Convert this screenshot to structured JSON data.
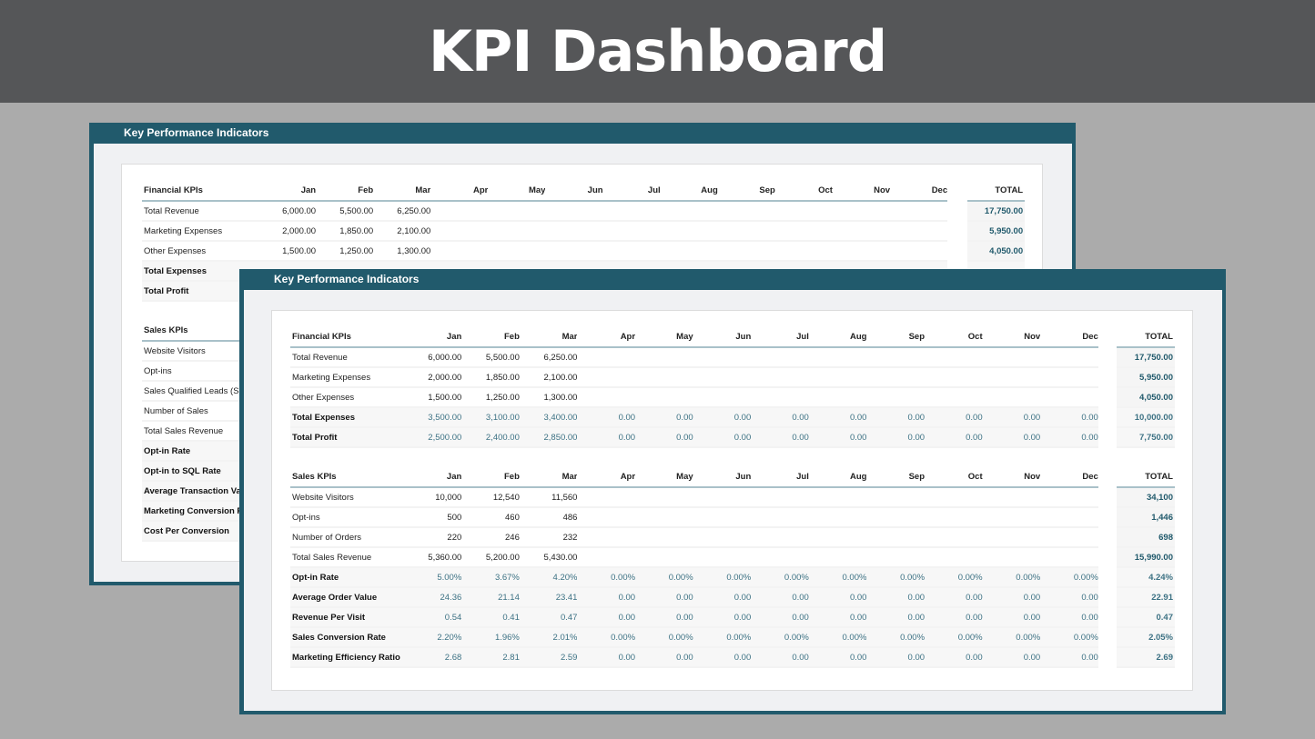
{
  "title": "KPI Dashboard",
  "months": [
    "Jan",
    "Feb",
    "Mar",
    "Apr",
    "May",
    "Jun",
    "Jul",
    "Aug",
    "Sep",
    "Oct",
    "Nov",
    "Dec"
  ],
  "total_label": "TOTAL",
  "back": {
    "header": "Key Performance Indicators",
    "financial": {
      "title": "Financial KPIs",
      "rows": [
        {
          "label": "Total Revenue",
          "values": [
            "6,000.00",
            "5,500.00",
            "6,250.00"
          ],
          "total": "17,750.00"
        },
        {
          "label": "Marketing Expenses",
          "values": [
            "2,000.00",
            "1,850.00",
            "2,100.00"
          ],
          "total": "5,950.00"
        },
        {
          "label": "Other Expenses",
          "values": [
            "1,500.00",
            "1,250.00",
            "1,300.00"
          ],
          "total": "4,050.00"
        },
        {
          "label": "Total Expenses",
          "calc": true
        },
        {
          "label": "Total Profit",
          "calc": true
        }
      ]
    },
    "sales": {
      "title": "Sales KPIs",
      "rows": [
        {
          "label": "Website Visitors"
        },
        {
          "label": "Opt-ins"
        },
        {
          "label": "Sales Qualified Leads (SQL)"
        },
        {
          "label": "Number of Sales"
        },
        {
          "label": "Total Sales Revenue"
        },
        {
          "label": "Opt-in Rate",
          "calc": true
        },
        {
          "label": "Opt-in to SQL Rate",
          "calc": true
        },
        {
          "label": "Average Transaction Value",
          "calc": true
        },
        {
          "label": "Marketing Conversion Rate",
          "calc": true
        },
        {
          "label": "Cost Per Conversion",
          "calc": true
        }
      ]
    }
  },
  "front": {
    "header": "Key Performance Indicators",
    "financial": {
      "title": "Financial KPIs",
      "rows": [
        {
          "label": "Total Revenue",
          "values": [
            "6,000.00",
            "5,500.00",
            "6,250.00"
          ],
          "total": "17,750.00"
        },
        {
          "label": "Marketing Expenses",
          "values": [
            "2,000.00",
            "1,850.00",
            "2,100.00"
          ],
          "total": "5,950.00"
        },
        {
          "label": "Other Expenses",
          "values": [
            "1,500.00",
            "1,250.00",
            "1,300.00"
          ],
          "total": "4,050.00"
        },
        {
          "label": "Total Expenses",
          "calc": true,
          "values": [
            "3,500.00",
            "3,100.00",
            "3,400.00",
            "0.00",
            "0.00",
            "0.00",
            "0.00",
            "0.00",
            "0.00",
            "0.00",
            "0.00",
            "0.00"
          ],
          "total": "10,000.00"
        },
        {
          "label": "Total Profit",
          "calc": true,
          "values": [
            "2,500.00",
            "2,400.00",
            "2,850.00",
            "0.00",
            "0.00",
            "0.00",
            "0.00",
            "0.00",
            "0.00",
            "0.00",
            "0.00",
            "0.00"
          ],
          "total": "7,750.00"
        }
      ]
    },
    "sales": {
      "title": "Sales KPIs",
      "rows": [
        {
          "label": "Website Visitors",
          "values": [
            "10,000",
            "12,540",
            "11,560"
          ],
          "total": "34,100"
        },
        {
          "label": "Opt-ins",
          "values": [
            "500",
            "460",
            "486"
          ],
          "total": "1,446"
        },
        {
          "label": "Number of Orders",
          "values": [
            "220",
            "246",
            "232"
          ],
          "total": "698"
        },
        {
          "label": "Total Sales Revenue",
          "values": [
            "5,360.00",
            "5,200.00",
            "5,430.00"
          ],
          "total": "15,990.00"
        },
        {
          "label": "Opt-in Rate",
          "calc": true,
          "values": [
            "5.00%",
            "3.67%",
            "4.20%",
            "0.00%",
            "0.00%",
            "0.00%",
            "0.00%",
            "0.00%",
            "0.00%",
            "0.00%",
            "0.00%",
            "0.00%"
          ],
          "total": "4.24%"
        },
        {
          "label": "Average Order Value",
          "calc": true,
          "values": [
            "24.36",
            "21.14",
            "23.41",
            "0.00",
            "0.00",
            "0.00",
            "0.00",
            "0.00",
            "0.00",
            "0.00",
            "0.00",
            "0.00"
          ],
          "total": "22.91"
        },
        {
          "label": "Revenue Per Visit",
          "calc": true,
          "values": [
            "0.54",
            "0.41",
            "0.47",
            "0.00",
            "0.00",
            "0.00",
            "0.00",
            "0.00",
            "0.00",
            "0.00",
            "0.00",
            "0.00"
          ],
          "total": "0.47"
        },
        {
          "label": "Sales Conversion Rate",
          "calc": true,
          "values": [
            "2.20%",
            "1.96%",
            "2.01%",
            "0.00%",
            "0.00%",
            "0.00%",
            "0.00%",
            "0.00%",
            "0.00%",
            "0.00%",
            "0.00%",
            "0.00%"
          ],
          "total": "2.05%"
        },
        {
          "label": "Marketing Efficiency Ratio",
          "calc": true,
          "values": [
            "2.68",
            "2.81",
            "2.59",
            "0.00",
            "0.00",
            "0.00",
            "0.00",
            "0.00",
            "0.00",
            "0.00",
            "0.00",
            "0.00"
          ],
          "total": "2.69"
        }
      ]
    }
  }
}
